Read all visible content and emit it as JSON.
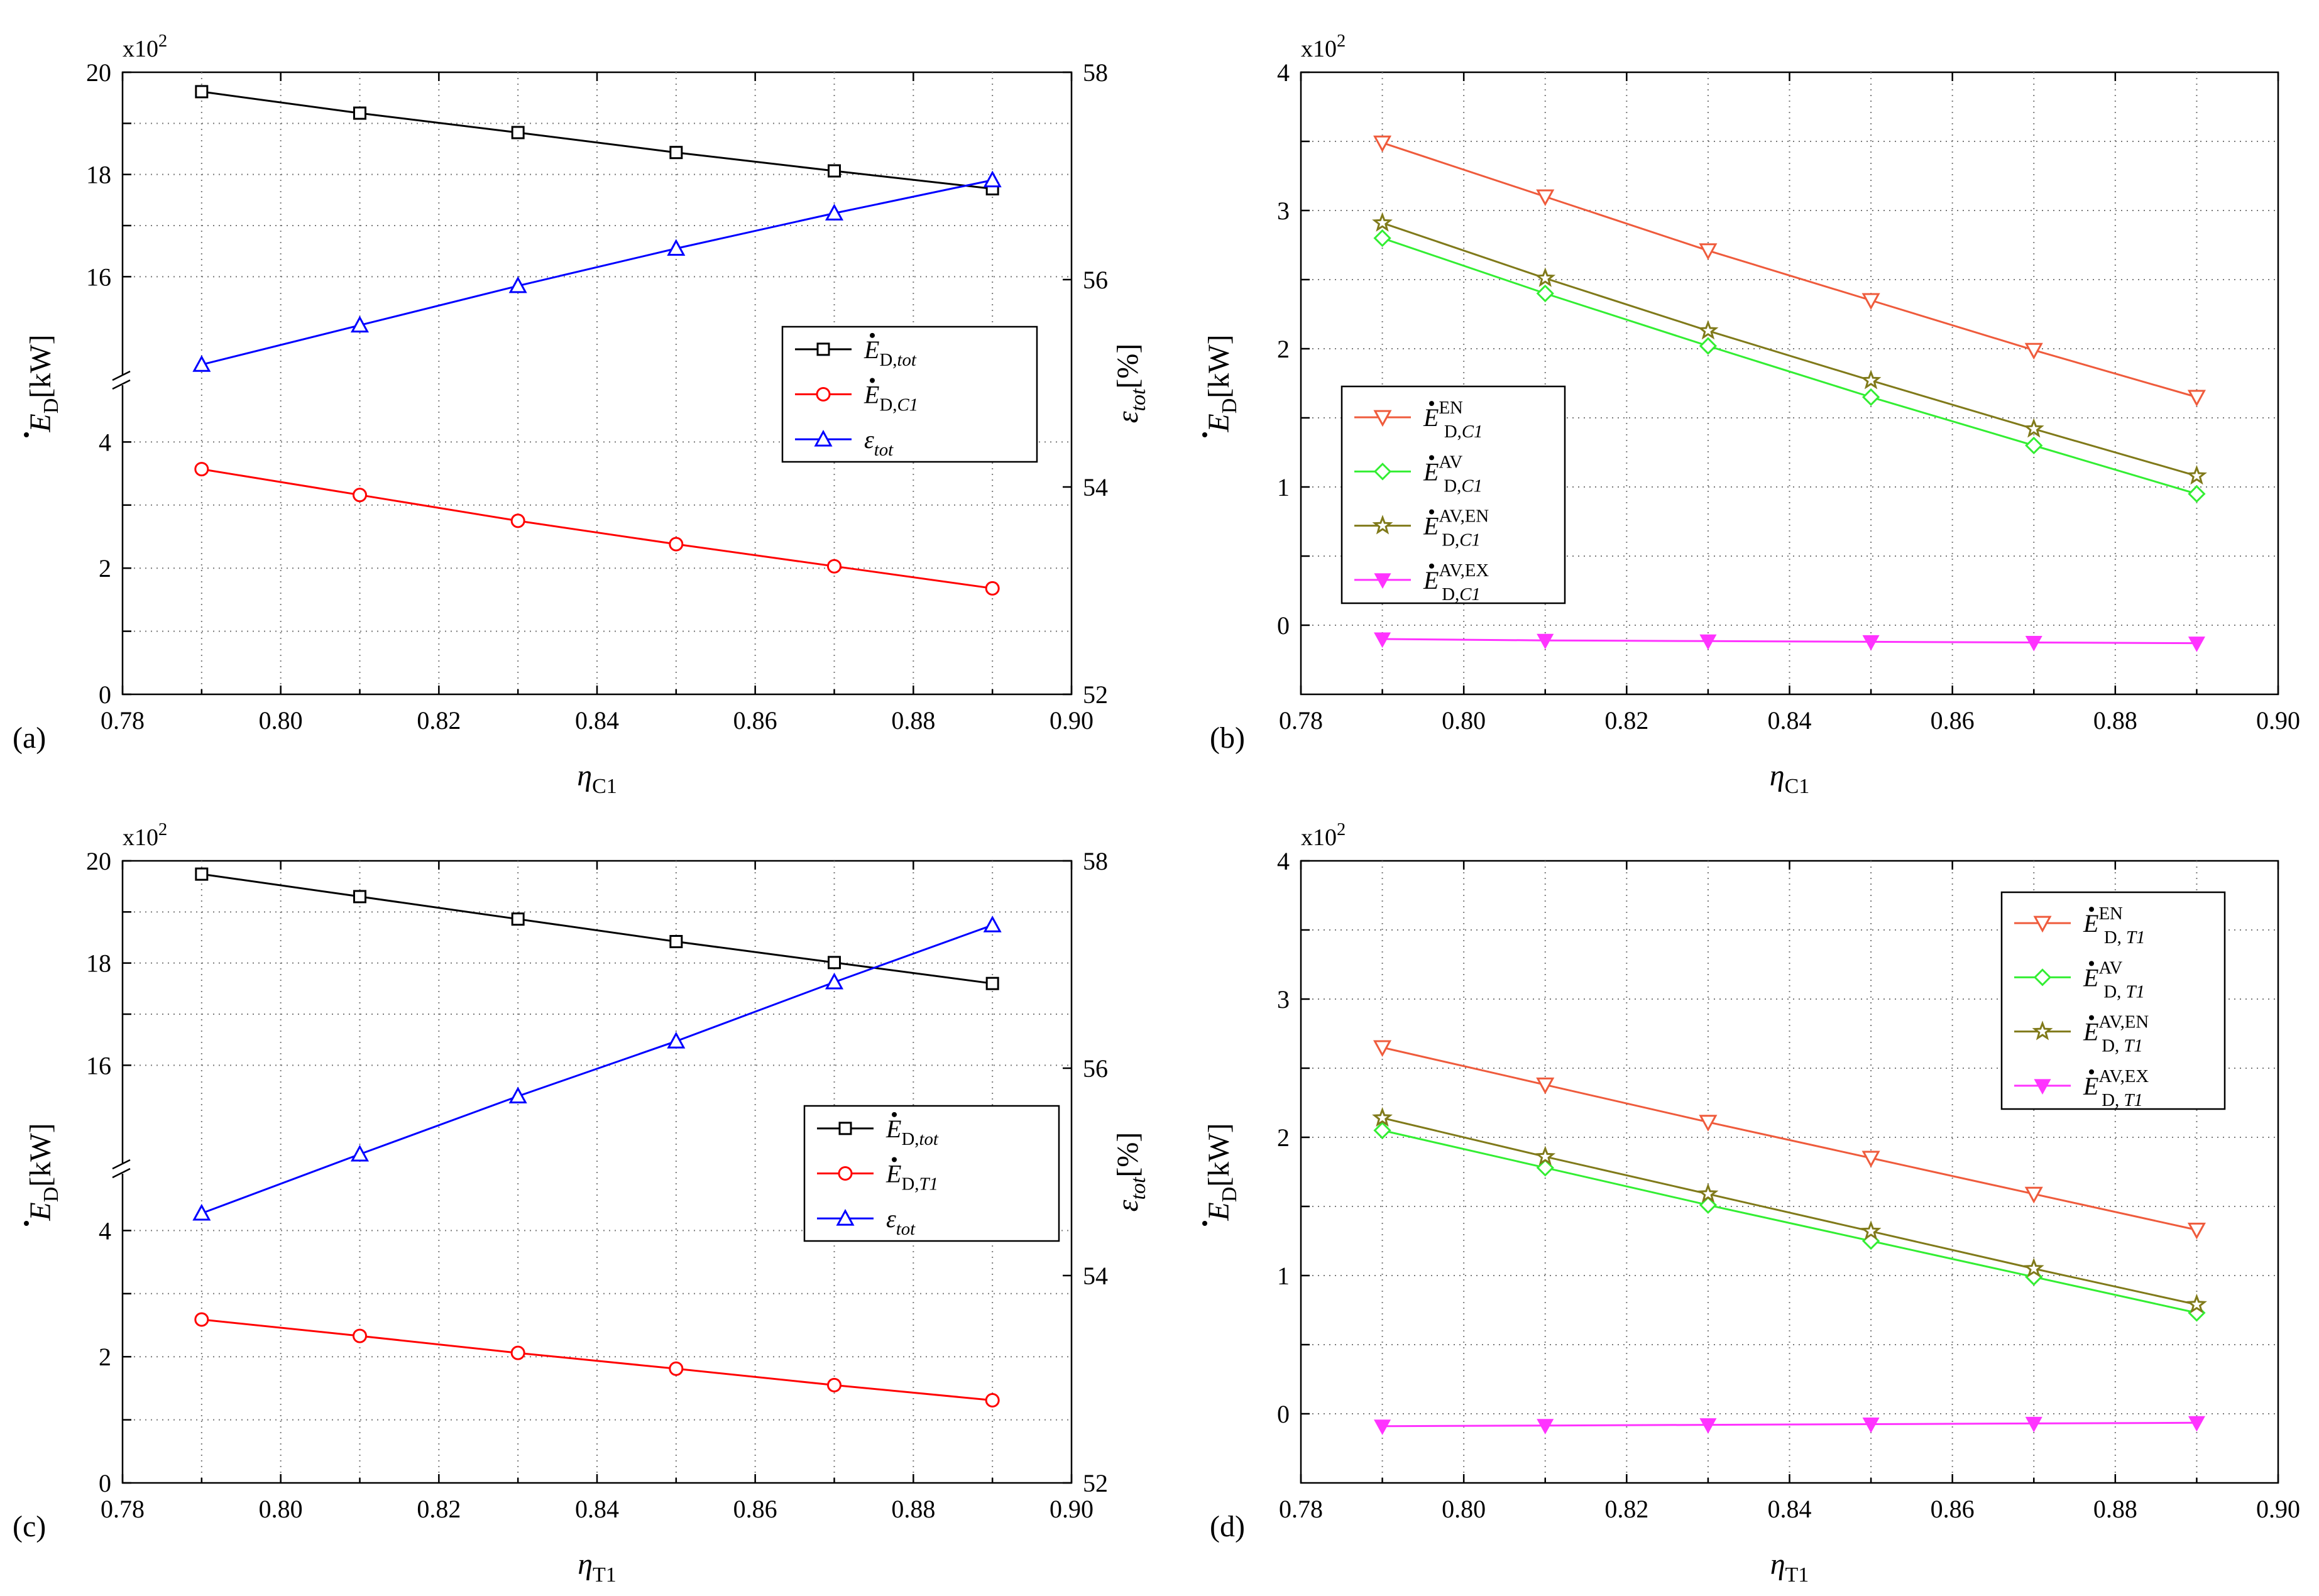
{
  "figure": {
    "panels": [
      {
        "id": "a",
        "panel_label": "(a)",
        "scale_label": "x10",
        "scale_exp": "2",
        "xlabel": {
          "sym": "η",
          "sub": "C1"
        },
        "left_label": {
          "base": "E",
          "sub": "D",
          "unit": "[kW]"
        },
        "right_label": {
          "sym": "ε",
          "sub": "tot",
          "unit": "[%]"
        },
        "x_ticks": [
          "0.78",
          "0.80",
          "0.82",
          "0.84",
          "0.86",
          "0.88",
          "0.90"
        ],
        "left_ticks_lower": [
          "0",
          "2",
          "4"
        ],
        "left_ticks_upper": [
          "16",
          "18",
          "20"
        ],
        "right_ticks": [
          "52",
          "54",
          "56",
          "58"
        ],
        "legend": [
          {
            "base": "E",
            "sub": "D,",
            "sub_it": "tot",
            "sup": ""
          },
          {
            "base": "E",
            "sub": "D,",
            "sub_it": "C1",
            "sup": ""
          },
          {
            "sym": "ε",
            "sub_it": "tot"
          }
        ]
      },
      {
        "id": "b",
        "panel_label": "(b)",
        "scale_label": "x10",
        "scale_exp": "2",
        "xlabel": {
          "sym": "η",
          "sub": "C1"
        },
        "left_label": {
          "base": "E",
          "sub": "D",
          "unit": "[kW]"
        },
        "x_ticks": [
          "0.78",
          "0.80",
          "0.82",
          "0.84",
          "0.86",
          "0.88",
          "0.90"
        ],
        "y_ticks": [
          "0",
          "1",
          "2",
          "3",
          "4"
        ],
        "legend": [
          {
            "base": "E",
            "sub": "D,",
            "sub_it": "C1",
            "sup": "EN"
          },
          {
            "base": "E",
            "sub": "D,",
            "sub_it": "C1",
            "sup": "AV"
          },
          {
            "base": "E",
            "sub": "D,",
            "sub_it": "C1",
            "sup": "AV,EN"
          },
          {
            "base": "E",
            "sub": "D,",
            "sub_it": "C1",
            "sup": "AV,EX"
          }
        ]
      },
      {
        "id": "c",
        "panel_label": "(c)",
        "scale_label": "x10",
        "scale_exp": "2",
        "xlabel": {
          "sym": "η",
          "sub": "T1"
        },
        "left_label": {
          "base": "E",
          "sub": "D",
          "unit": "[kW]"
        },
        "right_label": {
          "sym": "ε",
          "sub": "tot",
          "unit": "[%]"
        },
        "x_ticks": [
          "0.78",
          "0.80",
          "0.82",
          "0.84",
          "0.86",
          "0.88",
          "0.90"
        ],
        "left_ticks_lower": [
          "0",
          "2",
          "4"
        ],
        "left_ticks_upper": [
          "16",
          "18",
          "20"
        ],
        "right_ticks": [
          "52",
          "54",
          "56",
          "58"
        ],
        "legend": [
          {
            "base": "E",
            "sub": "D,",
            "sub_it": "tot",
            "sup": ""
          },
          {
            "base": "E",
            "sub": "D,",
            "sub_it": "T1",
            "sup": ""
          },
          {
            "sym": "ε",
            "sub_it": "tot"
          }
        ]
      },
      {
        "id": "d",
        "panel_label": "(d)",
        "scale_label": "x10",
        "scale_exp": "2",
        "xlabel": {
          "sym": "η",
          "sub": "T1"
        },
        "left_label": {
          "base": "E",
          "sub": "D",
          "unit": "[kW]"
        },
        "x_ticks": [
          "0.78",
          "0.80",
          "0.82",
          "0.84",
          "0.86",
          "0.88",
          "0.90"
        ],
        "y_ticks": [
          "0",
          "1",
          "2",
          "3",
          "4"
        ],
        "legend": [
          {
            "base": "E",
            "sub": "D, ",
            "sub_it": "T1",
            "sup": "EN"
          },
          {
            "base": "E",
            "sub": "D, ",
            "sub_it": "T1",
            "sup": "AV"
          },
          {
            "base": "E",
            "sub": "D, ",
            "sub_it": "T1",
            "sup": "AV,EN"
          },
          {
            "base": "E",
            "sub": "D, ",
            "sub_it": "T1",
            "sup": "AV,EX"
          }
        ]
      }
    ]
  },
  "chart_data": [
    {
      "type": "line",
      "panel": "(a)",
      "x": [
        0.79,
        0.81,
        0.83,
        0.85,
        0.87,
        0.89
      ],
      "xlim": [
        0.78,
        0.9
      ],
      "xlabel": "η_C1",
      "ylabel_left": "Ė_D [kW] (x10^2)",
      "ylim_left_lower": [
        0,
        5
      ],
      "ylim_left_upper": [
        14,
        20
      ],
      "ylabel_right": "ε_tot [%]",
      "ylim_right": [
        52,
        58
      ],
      "series": [
        {
          "name": "Ė_D,tot",
          "axis": "left",
          "color": "#000000",
          "marker": "square",
          "values": [
            19.62,
            19.2,
            18.82,
            18.43,
            18.07,
            17.72
          ]
        },
        {
          "name": "Ė_D,C1",
          "axis": "left",
          "color": "#ff0000",
          "marker": "circle",
          "values": [
            3.57,
            3.16,
            2.75,
            2.38,
            2.03,
            1.68
          ]
        },
        {
          "name": "ε_tot",
          "axis": "right",
          "color": "#0000ff",
          "marker": "triangle-up",
          "values": [
            55.18,
            55.56,
            55.94,
            56.3,
            56.64,
            56.96
          ]
        }
      ]
    },
    {
      "type": "line",
      "panel": "(b)",
      "x": [
        0.79,
        0.81,
        0.83,
        0.85,
        0.87,
        0.89
      ],
      "xlim": [
        0.78,
        0.9
      ],
      "xlabel": "η_C1",
      "ylabel": "Ė_D [kW] (x10^2)",
      "ylim": [
        -0.5,
        4
      ],
      "series": [
        {
          "name": "Ė_D,C1^EN",
          "color": "#ef5b3c",
          "marker": "triangle-down",
          "values": [
            3.49,
            3.1,
            2.71,
            2.35,
            1.99,
            1.65
          ]
        },
        {
          "name": "Ė_D,C1^AV",
          "color": "#33ee33",
          "marker": "diamond",
          "values": [
            2.8,
            2.4,
            2.02,
            1.65,
            1.3,
            0.95
          ]
        },
        {
          "name": "Ė_D,C1^AV,EN",
          "color": "#807a1a",
          "marker": "star",
          "values": [
            2.91,
            2.51,
            2.13,
            1.77,
            1.42,
            1.08
          ]
        },
        {
          "name": "Ė_D,C1^AV,EX",
          "color": "#ff33ff",
          "marker": "triangle-down-filled",
          "values": [
            -0.1,
            -0.11,
            -0.115,
            -0.12,
            -0.125,
            -0.13
          ]
        }
      ]
    },
    {
      "type": "line",
      "panel": "(c)",
      "x": [
        0.79,
        0.81,
        0.83,
        0.85,
        0.87,
        0.89
      ],
      "xlim": [
        0.78,
        0.9
      ],
      "xlabel": "η_T1",
      "ylabel_left": "Ė_D [kW] (x10^2)",
      "ylim_left_lower": [
        0,
        5
      ],
      "ylim_left_upper": [
        14,
        20
      ],
      "ylabel_right": "ε_tot [%]",
      "ylim_right": [
        52,
        58
      ],
      "series": [
        {
          "name": "Ė_D,tot",
          "axis": "left",
          "color": "#000000",
          "marker": "square",
          "values": [
            19.74,
            19.3,
            18.86,
            18.42,
            18.01,
            17.6
          ]
        },
        {
          "name": "Ė_D,T1",
          "axis": "left",
          "color": "#ff0000",
          "marker": "circle",
          "values": [
            2.59,
            2.33,
            2.06,
            1.81,
            1.55,
            1.31
          ]
        },
        {
          "name": "ε_tot",
          "axis": "right",
          "color": "#0000ff",
          "marker": "triangle-up",
          "values": [
            54.6,
            55.17,
            55.73,
            56.26,
            56.83,
            57.38
          ]
        }
      ]
    },
    {
      "type": "line",
      "panel": "(d)",
      "x": [
        0.79,
        0.81,
        0.83,
        0.85,
        0.87,
        0.89
      ],
      "xlim": [
        0.78,
        0.9
      ],
      "xlabel": "η_T1",
      "ylabel": "Ė_D [kW] (x10^2)",
      "ylim": [
        -0.5,
        4
      ],
      "series": [
        {
          "name": "Ė_D,T1^EN",
          "color": "#ef5b3c",
          "marker": "triangle-down",
          "values": [
            2.65,
            2.38,
            2.11,
            1.85,
            1.59,
            1.33
          ]
        },
        {
          "name": "Ė_D,T1^AV",
          "color": "#33ee33",
          "marker": "diamond",
          "values": [
            2.05,
            1.78,
            1.51,
            1.25,
            0.99,
            0.73
          ]
        },
        {
          "name": "Ė_D,T1^AV,EN",
          "color": "#807a1a",
          "marker": "star",
          "values": [
            2.14,
            1.86,
            1.59,
            1.32,
            1.05,
            0.79
          ]
        },
        {
          "name": "Ė_D,T1^AV,EX",
          "color": "#ff33ff",
          "marker": "triangle-down-filled",
          "values": [
            -0.09,
            -0.085,
            -0.08,
            -0.075,
            -0.07,
            -0.065
          ]
        }
      ]
    }
  ]
}
